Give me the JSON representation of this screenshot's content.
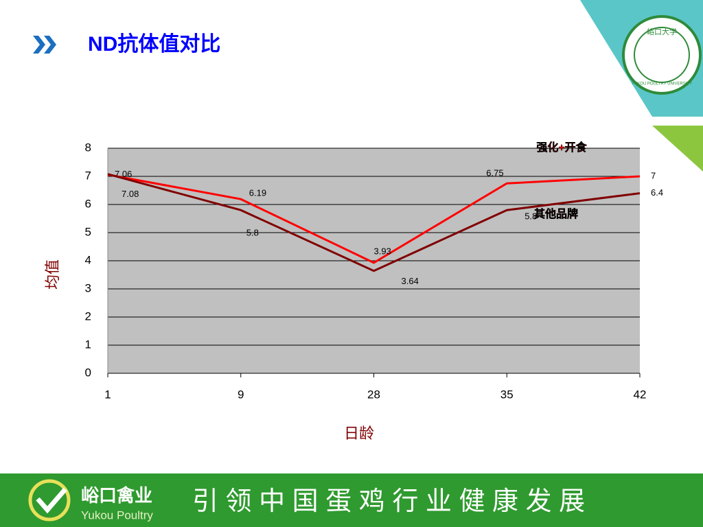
{
  "header": {
    "title": "ND抗体值对比"
  },
  "logo": {
    "name": "峪口大学",
    "subtitle": "YUKOU POULTRY UNIVERSITY"
  },
  "chart_data": {
    "type": "line",
    "y_label": "均值",
    "x_label": "日龄",
    "categories": [
      "1",
      "9",
      "28",
      "35",
      "42"
    ],
    "series": [
      {
        "name": "强化+开食",
        "color": "#ff0000",
        "values": [
          7.06,
          6.19,
          3.93,
          6.75,
          7
        ]
      },
      {
        "name": "其他品牌",
        "color": "#800000",
        "values": [
          7.08,
          5.8,
          3.64,
          5.8,
          6.4
        ]
      }
    ],
    "ylim": [
      0,
      8
    ],
    "yticks": [
      0,
      1,
      2,
      3,
      4,
      5,
      6,
      7,
      8
    ],
    "grid": true,
    "plot_background": "#c0c0c0"
  },
  "footer": {
    "brand": "峪口禽业",
    "brand_en": "Yukou Poultry",
    "slogan": "引 领 中 国 蛋 鸡 行 业 健 康 发 展"
  }
}
